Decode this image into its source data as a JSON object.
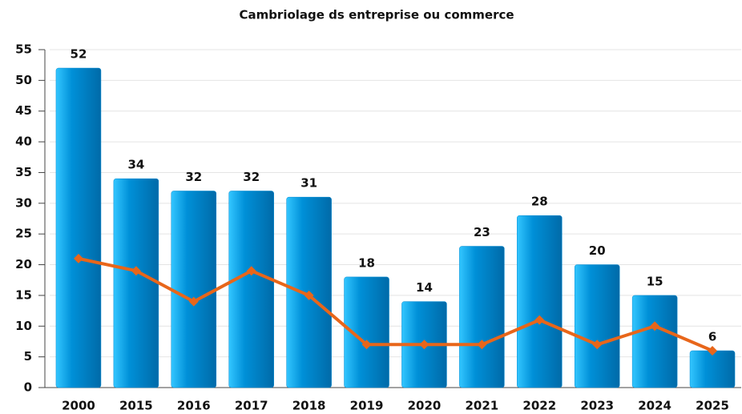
{
  "chart_data": {
    "type": "bar",
    "title": "Cambriolage ds entreprise ou commerce",
    "categories": [
      "2000",
      "2015",
      "2016",
      "2017",
      "2018",
      "2019",
      "2020",
      "2021",
      "2022",
      "2023",
      "2024",
      "2025"
    ],
    "series": [
      {
        "type": "bar",
        "color": "#0088d0",
        "values": [
          52,
          34,
          32,
          32,
          31,
          18,
          14,
          23,
          28,
          20,
          15,
          6
        ]
      },
      {
        "type": "line",
        "color": "#e8661a",
        "values": [
          21,
          19,
          14,
          19,
          15,
          7,
          7,
          7,
          11,
          7,
          10,
          6
        ]
      }
    ],
    "ylim": [
      0,
      55
    ],
    "yticks": [
      0,
      5,
      10,
      15,
      20,
      25,
      30,
      35,
      40,
      45,
      50,
      55
    ],
    "grid": true
  }
}
